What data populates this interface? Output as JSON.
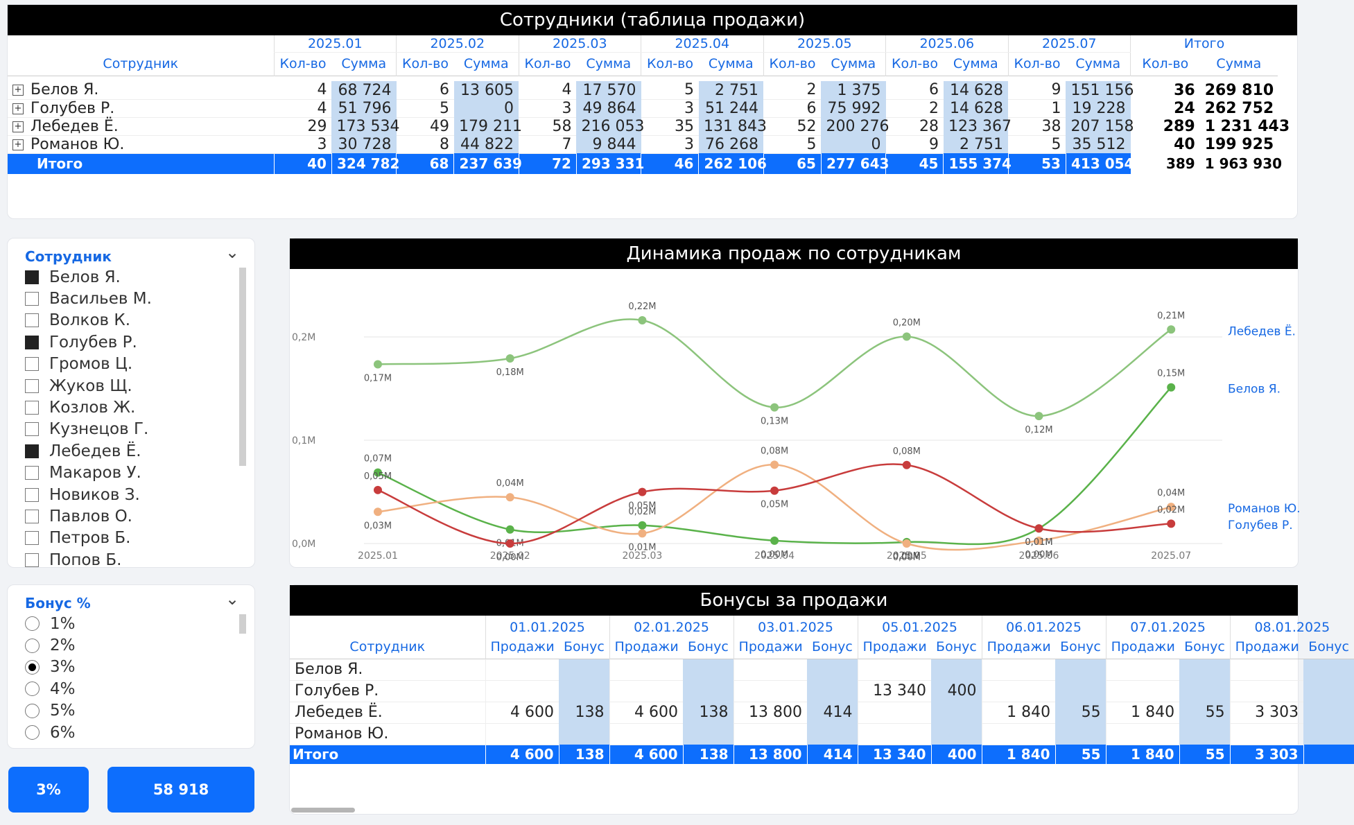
{
  "sales_table": {
    "title": "Сотрудники (таблица продажи)",
    "employee_header": "Сотрудник",
    "qty_label": "Кол-во",
    "sum_label": "Сумма",
    "months": [
      "2025.01",
      "2025.02",
      "2025.03",
      "2025.04",
      "2025.05",
      "2025.06",
      "2025.07"
    ],
    "total_header": "Итого",
    "rows": [
      {
        "name": "Белов Я.",
        "cells": [
          [
            "4",
            "68 724"
          ],
          [
            "6",
            "13 605"
          ],
          [
            "4",
            "17 570"
          ],
          [
            "5",
            "2 751"
          ],
          [
            "2",
            "1 375"
          ],
          [
            "6",
            "14 628"
          ],
          [
            "9",
            "151 156"
          ]
        ],
        "total_qty": "36",
        "total_sum": "269 810"
      },
      {
        "name": "Голубев Р.",
        "cells": [
          [
            "4",
            "51 796"
          ],
          [
            "5",
            "0"
          ],
          [
            "3",
            "49 864"
          ],
          [
            "3",
            "51 244"
          ],
          [
            "6",
            "75 992"
          ],
          [
            "2",
            "14 628"
          ],
          [
            "1",
            "19 228"
          ]
        ],
        "total_qty": "24",
        "total_sum": "262 752"
      },
      {
        "name": "Лебедев Ё.",
        "cells": [
          [
            "29",
            "173 534"
          ],
          [
            "49",
            "179 211"
          ],
          [
            "58",
            "216 053"
          ],
          [
            "35",
            "131 843"
          ],
          [
            "52",
            "200 276"
          ],
          [
            "28",
            "123 367"
          ],
          [
            "38",
            "207 158"
          ]
        ],
        "total_qty": "289",
        "total_sum": "1 231 443"
      },
      {
        "name": "Романов Ю.",
        "cells": [
          [
            "3",
            "30 728"
          ],
          [
            "8",
            "44 822"
          ],
          [
            "7",
            "9 844"
          ],
          [
            "3",
            "76 268"
          ],
          [
            "5",
            "0"
          ],
          [
            "9",
            "2 751"
          ],
          [
            "5",
            "35 512"
          ]
        ],
        "total_qty": "40",
        "total_sum": "199 925"
      }
    ],
    "total_row": {
      "label": "Итого",
      "cells": [
        [
          "40",
          "324 782"
        ],
        [
          "68",
          "237 639"
        ],
        [
          "72",
          "293 331"
        ],
        [
          "46",
          "262 106"
        ],
        [
          "65",
          "277 643"
        ],
        [
          "45",
          "155 374"
        ],
        [
          "53",
          "413 054"
        ]
      ],
      "total_qty": "389",
      "total_sum": "1 963 930"
    },
    "expand_symbol": "+"
  },
  "employee_slicer": {
    "title": "Сотрудник",
    "chevron": "⌄",
    "items": [
      {
        "label": "Белов Я.",
        "checked": true
      },
      {
        "label": "Васильев М.",
        "checked": false
      },
      {
        "label": "Волков К.",
        "checked": false
      },
      {
        "label": "Голубев Р.",
        "checked": true
      },
      {
        "label": "Громов Ц.",
        "checked": false
      },
      {
        "label": "Жуков Щ.",
        "checked": false
      },
      {
        "label": "Козлов Ж.",
        "checked": false
      },
      {
        "label": "Кузнецов Г.",
        "checked": false
      },
      {
        "label": "Лебедев Ё.",
        "checked": true
      },
      {
        "label": "Макаров У.",
        "checked": false
      },
      {
        "label": "Новиков З.",
        "checked": false
      },
      {
        "label": "Павлов О.",
        "checked": false
      },
      {
        "label": "Петров Б.",
        "checked": false
      },
      {
        "label": "Попов Б.",
        "checked": false
      }
    ]
  },
  "bonus_slicer": {
    "title": "Бонус %",
    "chevron": "⌄",
    "items": [
      {
        "label": "1%",
        "selected": false
      },
      {
        "label": "2%",
        "selected": false
      },
      {
        "label": "3%",
        "selected": true
      },
      {
        "label": "4%",
        "selected": false
      },
      {
        "label": "5%",
        "selected": false
      },
      {
        "label": "6%",
        "selected": false
      }
    ]
  },
  "cards": {
    "bonus_pct": "3%",
    "bonus_total": "58 918"
  },
  "chart_data": {
    "type": "line",
    "title": "Динамика продаж по сотрудникам",
    "categories": [
      "2025.01",
      "2025.02",
      "2025.03",
      "2025.04",
      "2025.05",
      "2025.06",
      "2025.07"
    ],
    "y_ticks": [
      {
        "value": 0,
        "label": "0,0M"
      },
      {
        "value": 0.1,
        "label": "0,1M"
      },
      {
        "value": 0.2,
        "label": "0,2M"
      }
    ],
    "ylim": [
      0,
      0.24
    ],
    "grid": true,
    "legend": "right (series names at line ends)",
    "series": [
      {
        "name": "Лебедев Ё.",
        "color": "#8cc47c",
        "values": [
          0.1735,
          0.1792,
          0.2161,
          0.1318,
          0.2003,
          0.1234,
          0.2072
        ],
        "labels": [
          "0,17M",
          "0,18M",
          "0,22M",
          "0,13M",
          "0,20M",
          "0,12M",
          "0,21M"
        ]
      },
      {
        "name": "Белов Я.",
        "color": "#5ab24a",
        "values": [
          0.0687,
          0.0136,
          0.0176,
          0.0028,
          0.0014,
          0.0146,
          0.1512
        ],
        "labels": [
          "0,07M",
          "0,01M",
          "0,02M",
          "0,00M",
          "0,00M",
          "0,01M",
          "0,15M"
        ]
      },
      {
        "name": "Романов Ю.",
        "color": "#f0b080",
        "values": [
          0.0307,
          0.0448,
          0.0098,
          0.0763,
          0.0,
          0.0028,
          0.0355
        ],
        "labels": [
          "0,03M",
          "0,04M",
          "0,01M",
          "0,08M",
          "0,00M",
          "0,00M",
          "0,04M"
        ]
      },
      {
        "name": "Голубев Р.",
        "color": "#c83c3c",
        "values": [
          0.0518,
          0.0,
          0.0499,
          0.0512,
          0.076,
          0.0146,
          0.0192
        ],
        "labels": [
          "0,05M",
          "0,00M",
          "0,05M",
          "0,05M",
          "0,08M",
          "0,01M",
          "0,02M"
        ]
      }
    ]
  },
  "bonus_table": {
    "title": "Бонусы за продажи",
    "employee_header": "Сотрудник",
    "sales_label": "Продажи",
    "bonus_label": "Бонус",
    "dates": [
      "01.01.2025",
      "02.01.2025",
      "03.01.2025",
      "05.01.2025",
      "06.01.2025",
      "07.01.2025",
      "08.01.2025"
    ],
    "rows": [
      {
        "name": "Белов Я.",
        "cells": [
          [
            "",
            ""
          ],
          [
            "",
            ""
          ],
          [
            "",
            ""
          ],
          [
            "",
            ""
          ],
          [
            "",
            ""
          ],
          [
            "",
            ""
          ],
          [
            "",
            ""
          ]
        ]
      },
      {
        "name": "Голубев Р.",
        "cells": [
          [
            "",
            ""
          ],
          [
            "",
            ""
          ],
          [
            "",
            ""
          ],
          [
            "13 340",
            "400"
          ],
          [
            "",
            ""
          ],
          [
            "",
            ""
          ],
          [
            "",
            ""
          ]
        ]
      },
      {
        "name": "Лебедев Ё.",
        "cells": [
          [
            "4 600",
            "138"
          ],
          [
            "4 600",
            "138"
          ],
          [
            "13 800",
            "414"
          ],
          [
            "",
            ""
          ],
          [
            "1 840",
            "55"
          ],
          [
            "1 840",
            "55"
          ],
          [
            "3 303",
            ""
          ]
        ]
      },
      {
        "name": "Романов Ю.",
        "cells": [
          [
            "",
            ""
          ],
          [
            "",
            ""
          ],
          [
            "",
            ""
          ],
          [
            "",
            ""
          ],
          [
            "",
            ""
          ],
          [
            "",
            ""
          ],
          [
            "",
            ""
          ]
        ]
      }
    ],
    "total_row": {
      "label": "Итого",
      "cells": [
        [
          "4 600",
          "138"
        ],
        [
          "4 600",
          "138"
        ],
        [
          "13 800",
          "414"
        ],
        [
          "13 340",
          "400"
        ],
        [
          "1 840",
          "55"
        ],
        [
          "1 840",
          "55"
        ],
        [
          "3 303",
          ""
        ]
      ]
    }
  }
}
